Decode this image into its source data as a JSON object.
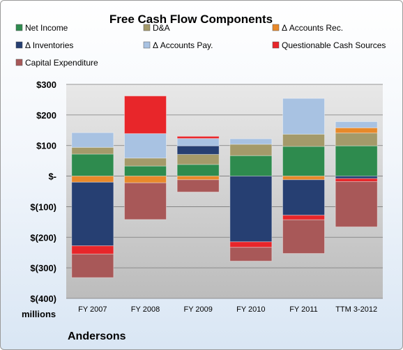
{
  "company": "Andersons",
  "chart_data": {
    "type": "bar",
    "stacked": true,
    "title": "Free Cash Flow Components",
    "unit_label": "millions",
    "categories": [
      "FY 2007",
      "FY 2008",
      "FY 2009",
      "FY 2010",
      "FY 2011",
      "TTM 3-2012"
    ],
    "ylim": [
      -400,
      300
    ],
    "yticks": [
      300,
      200,
      100,
      0,
      -100,
      -200,
      -300,
      -400
    ],
    "ytick_labels": [
      "$300",
      "$200",
      "$100",
      "$-",
      "$(100)",
      "$(200)",
      "$(300)",
      "$(400)"
    ],
    "grid": true,
    "legend_position": "top",
    "series": [
      {
        "name": "Net Income",
        "color": "#2e8b4e",
        "values": [
          72,
          33,
          38,
          67,
          97,
          99
        ]
      },
      {
        "name": "D&A",
        "color": "#a49a6a",
        "values": [
          22,
          26,
          33,
          37,
          40,
          42
        ]
      },
      {
        "name": "Δ Accounts Rec.",
        "color": "#e8892a",
        "values": [
          -20,
          -22,
          -12,
          0,
          -12,
          17
        ]
      },
      {
        "name": "Δ Inventories",
        "color": "#263f72",
        "values": [
          -208,
          0,
          28,
          -215,
          -116,
          -8
        ]
      },
      {
        "name": "Δ Accounts Pay.",
        "color": "#a8c2e2",
        "values": [
          48,
          80,
          24,
          18,
          117,
          20
        ]
      },
      {
        "name": "Questionable Cash Sources",
        "color": "#e8262a",
        "values": [
          -27,
          123,
          7,
          -18,
          -15,
          -10
        ]
      },
      {
        "name": "Capital Expenditure",
        "color": "#a85858",
        "values": [
          -77,
          -120,
          -40,
          -45,
          -110,
          -148
        ]
      }
    ]
  }
}
